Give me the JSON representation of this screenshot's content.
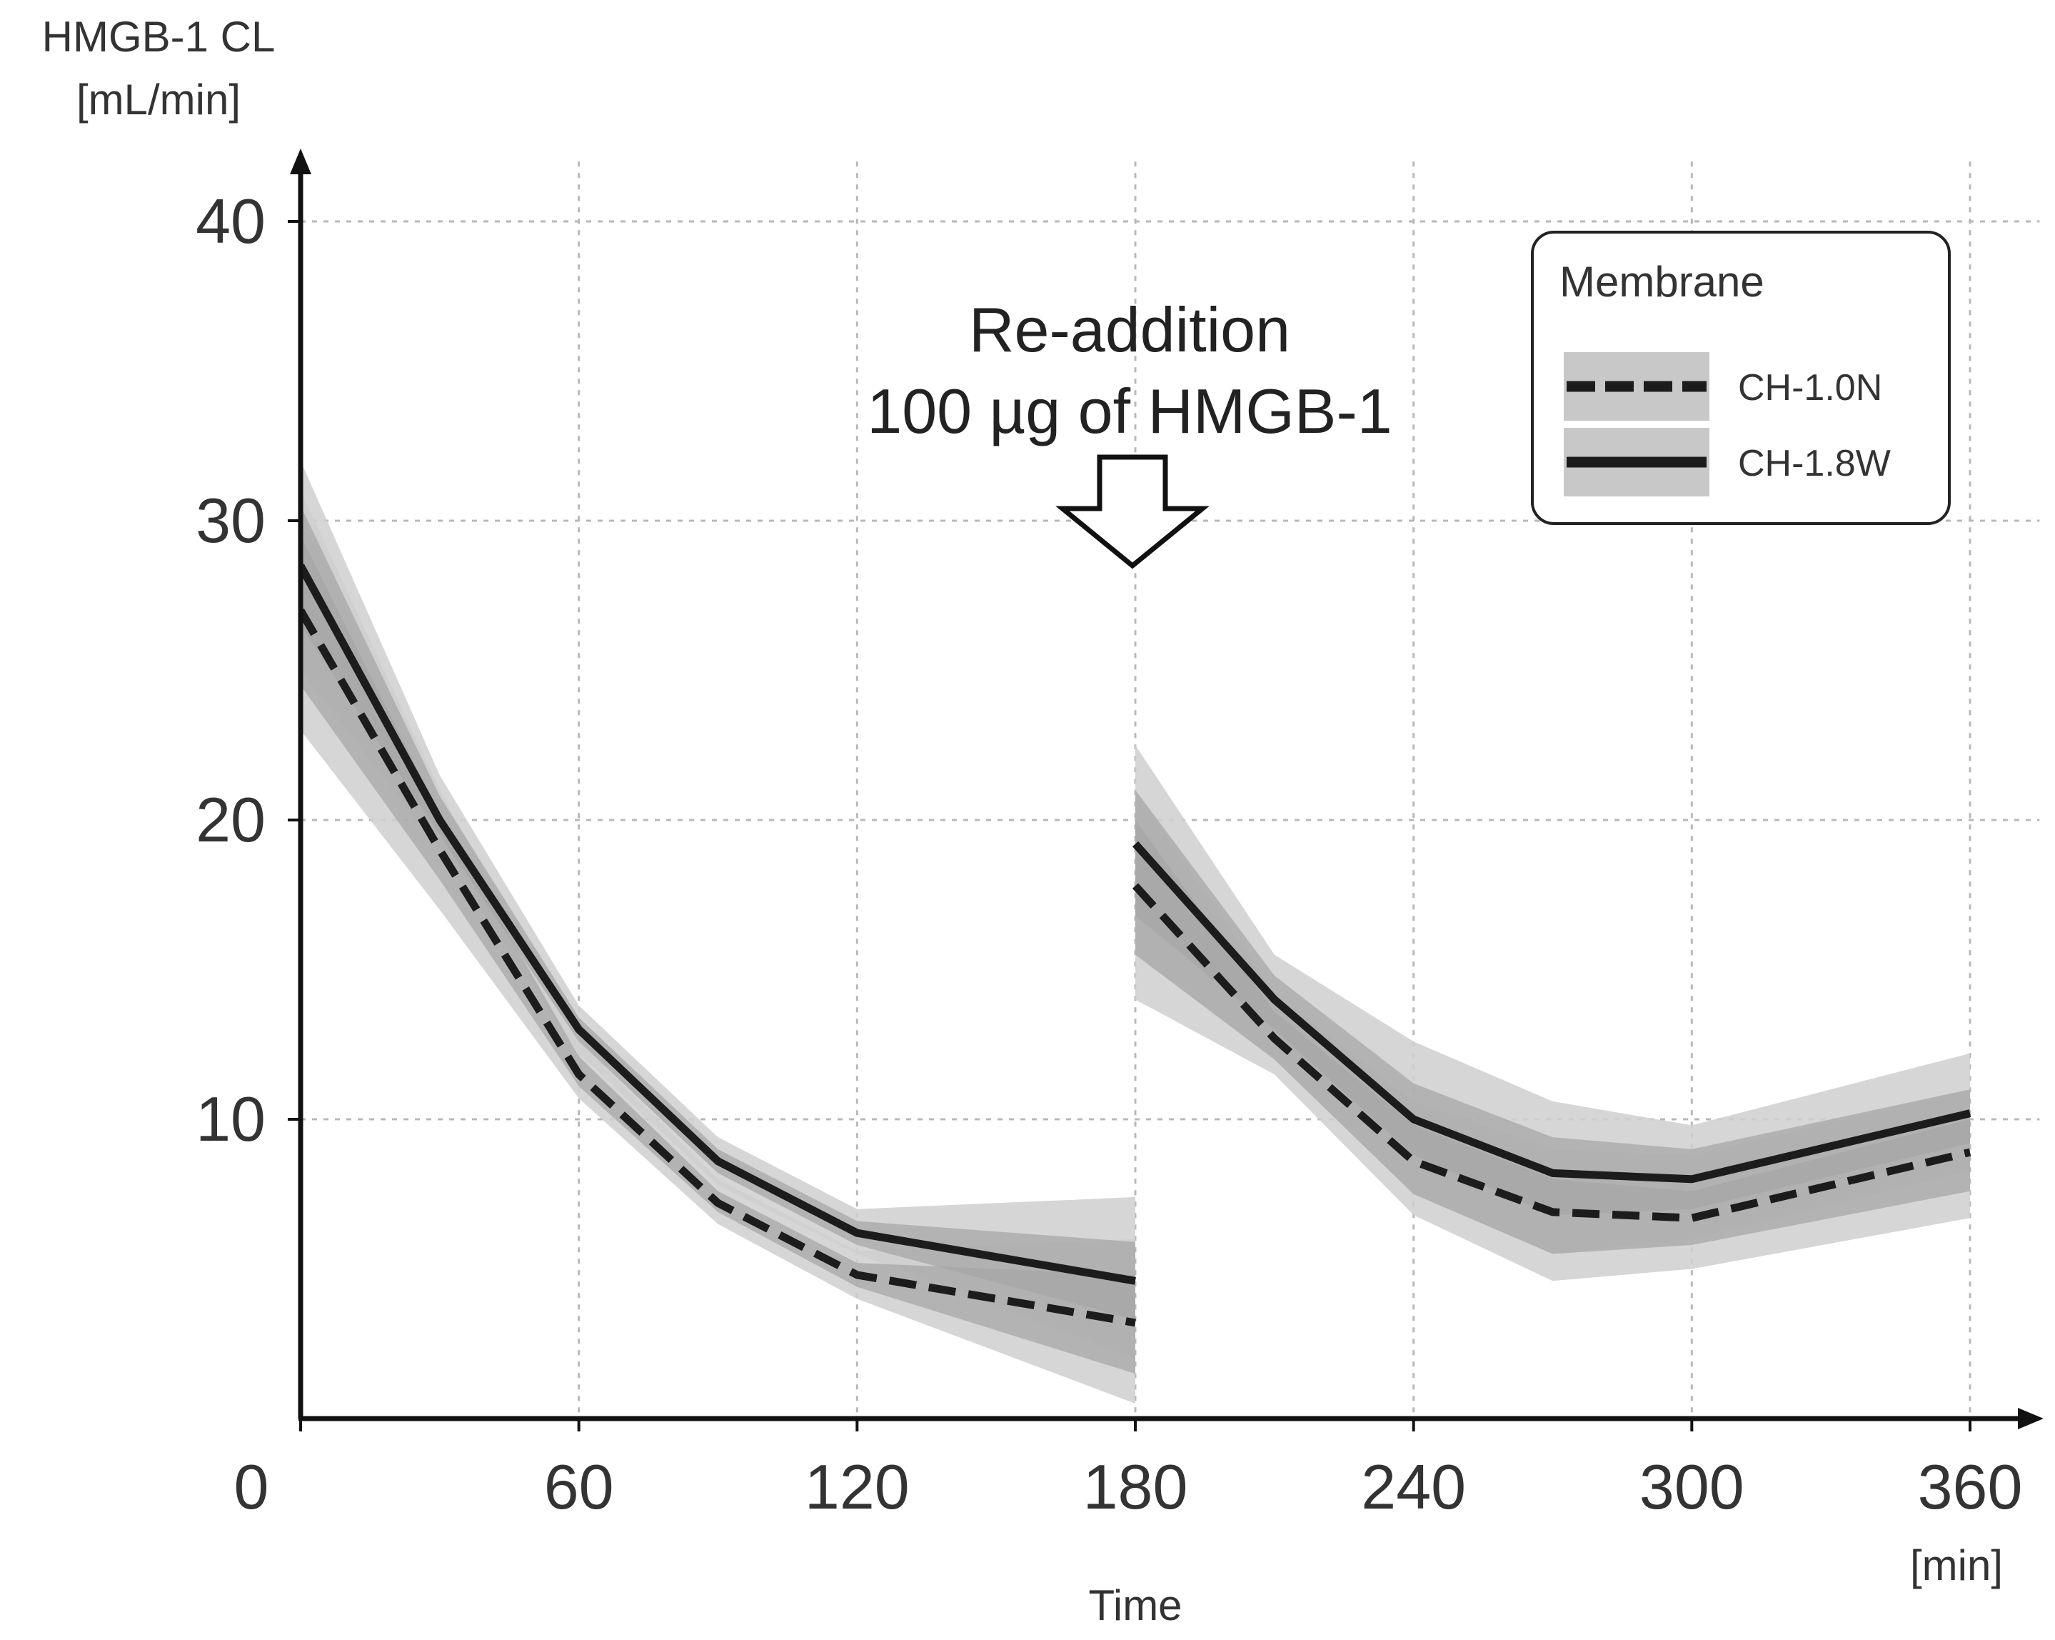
{
  "chart_data": {
    "type": "line",
    "y_axis_title": [
      "HMGB-1 CL",
      "[mL/min]"
    ],
    "x_axis_title": "Time",
    "x_unit": "[min]",
    "x_ticks": [
      0,
      60,
      120,
      180,
      240,
      300,
      360
    ],
    "y_ticks": [
      10,
      20,
      30,
      40
    ],
    "xlim": [
      0,
      375
    ],
    "ylim": [
      0,
      42
    ],
    "grid": true,
    "annotation": {
      "lines": [
        "Re-addition",
        "100 µg  of HMGB-1"
      ],
      "x": 180
    },
    "legend": {
      "title": "Membrane",
      "position": "top-right"
    },
    "series": [
      {
        "name": "CH-1.0N",
        "style": "dashed",
        "segments": [
          {
            "x": [
              0,
              30,
              60,
              90,
              120,
              180
            ],
            "y": [
              27,
              19,
              11.5,
              7.2,
              4.8,
              3.2
            ],
            "band_outer": [
              [
                23,
                31
              ],
              [
                17,
                21
              ],
              [
                10.7,
                12.6
              ],
              [
                6.5,
                8.0
              ],
              [
                4.0,
                5.6
              ],
              [
                0.5,
                6.0
              ]
            ],
            "band_inner": [
              [
                24.5,
                29.5
              ],
              [
                18,
                20.2
              ],
              [
                11.1,
                12.1
              ],
              [
                6.9,
                7.6
              ],
              [
                4.4,
                5.2
              ],
              [
                1.5,
                4.8
              ]
            ]
          },
          {
            "x": [
              180,
              210,
              240,
              270,
              300,
              360
            ],
            "y": [
              17.8,
              12.7,
              8.6,
              6.9,
              6.7,
              8.9
            ],
            "band_outer": [
              [
                14,
                21
              ],
              [
                11.5,
                14.2
              ],
              [
                6.8,
                10.6
              ],
              [
                4.6,
                9.0
              ],
              [
                5.0,
                8.8
              ],
              [
                6.7,
                11.0
              ]
            ],
            "band_inner": [
              [
                15.5,
                20.0
              ],
              [
                12.0,
                13.6
              ],
              [
                7.5,
                9.8
              ],
              [
                5.5,
                8.0
              ],
              [
                5.8,
                7.6
              ],
              [
                7.6,
                10.0
              ]
            ]
          }
        ]
      },
      {
        "name": "CH-1.8W",
        "style": "solid",
        "segments": [
          {
            "x": [
              0,
              30,
              60,
              90,
              120,
              180
            ],
            "y": [
              28.5,
              20.0,
              13.0,
              8.6,
              6.2,
              4.6
            ],
            "band_outer": [
              [
                25.0,
                32.0
              ],
              [
                19.0,
                21.5
              ],
              [
                12.2,
                13.8
              ],
              [
                7.8,
                9.4
              ],
              [
                5.5,
                7.0
              ],
              [
                2.0,
                7.4
              ]
            ],
            "band_inner": [
              [
                26.5,
                30.5
              ],
              [
                19.5,
                20.8
              ],
              [
                12.6,
                13.4
              ],
              [
                8.2,
                9.0
              ],
              [
                5.8,
                6.6
              ],
              [
                3.3,
                5.9
              ]
            ]
          },
          {
            "x": [
              180,
              210,
              240,
              270,
              300,
              360
            ],
            "y": [
              19.2,
              14.0,
              10.0,
              8.2,
              8.0,
              10.2
            ],
            "band_outer": [
              [
                15.5,
                22.5
              ],
              [
                12.0,
                15.5
              ],
              [
                7.5,
                12.6
              ],
              [
                5.5,
                10.6
              ],
              [
                6.0,
                9.8
              ],
              [
                8.3,
                12.2
              ]
            ],
            "band_inner": [
              [
                16.8,
                21.0
              ],
              [
                13.0,
                14.8
              ],
              [
                8.8,
                11.2
              ],
              [
                6.8,
                9.4
              ],
              [
                7.0,
                9.0
              ],
              [
                9.2,
                11.0
              ]
            ]
          }
        ]
      }
    ],
    "colors": {
      "band_outer": "#cfcfcf",
      "band_inner": "#a7a7a7",
      "line": "#1c1c1c",
      "legend_band": "#c8c8c8"
    }
  }
}
